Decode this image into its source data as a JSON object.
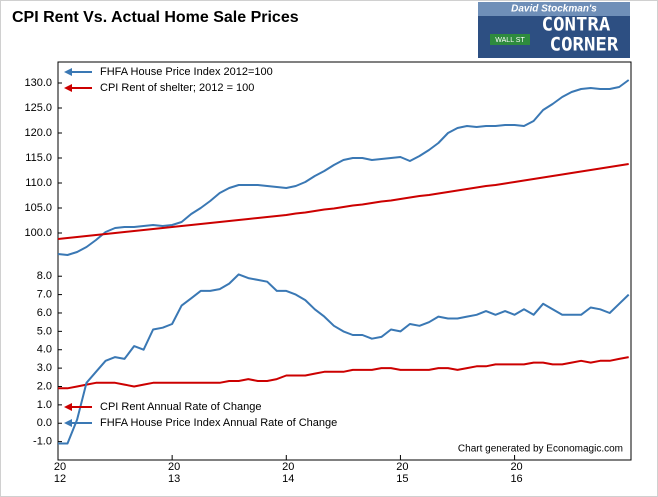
{
  "logo": {
    "byline": "David Stockman's",
    "word1": "CONTRA",
    "word2": "CORNER",
    "sign": "WALL ST"
  },
  "chart_data": [
    {
      "type": "line",
      "title": "CPI Rent Vs. Actual Home Sale Prices",
      "x": [
        2012,
        2012.083,
        2012.167,
        2012.25,
        2012.333,
        2012.417,
        2012.5,
        2012.583,
        2012.667,
        2012.75,
        2012.833,
        2012.917,
        2013,
        2013.083,
        2013.167,
        2013.25,
        2013.333,
        2013.417,
        2013.5,
        2013.583,
        2013.667,
        2013.75,
        2013.833,
        2013.917,
        2014,
        2014.083,
        2014.167,
        2014.25,
        2014.333,
        2014.417,
        2014.5,
        2014.583,
        2014.667,
        2014.75,
        2014.833,
        2014.917,
        2015,
        2015.083,
        2015.167,
        2015.25,
        2015.333,
        2015.417,
        2015.5,
        2015.583,
        2015.667,
        2015.75,
        2015.833,
        2015.917,
        2016,
        2016.083,
        2016.167,
        2016.25,
        2016.333,
        2016.417,
        2016.5,
        2016.583,
        2016.667,
        2016.75,
        2016.833,
        2016.917,
        2017
      ],
      "series": [
        {
          "name": "FHFA House Price Index 2012=100",
          "color": "#3a78b4",
          "values": [
            95.8,
            95.6,
            96.2,
            97.2,
            98.6,
            100.2,
            101.0,
            101.2,
            101.2,
            101.4,
            101.6,
            101.4,
            101.6,
            102.2,
            103.8,
            105.0,
            106.4,
            108.0,
            109.0,
            109.6,
            109.6,
            109.6,
            109.4,
            109.2,
            109.0,
            109.4,
            110.2,
            111.4,
            112.4,
            113.6,
            114.6,
            115.0,
            115.0,
            114.6,
            114.8,
            115.0,
            115.2,
            114.4,
            115.4,
            116.6,
            118.0,
            120.0,
            121.0,
            121.4,
            121.2,
            121.4,
            121.4,
            121.6,
            121.6,
            121.4,
            122.4,
            124.6,
            125.8,
            127.2,
            128.2,
            128.8,
            129.0,
            128.8,
            128.8,
            129.2,
            130.6
          ]
        },
        {
          "name": "CPI Rent of shelter; 2012 = 100",
          "color": "#cc0000",
          "values": [
            98.8,
            99.0,
            99.2,
            99.4,
            99.6,
            99.8,
            100.0,
            100.2,
            100.4,
            100.6,
            100.8,
            101.0,
            101.2,
            101.4,
            101.6,
            101.8,
            102.0,
            102.2,
            102.4,
            102.6,
            102.8,
            103.0,
            103.2,
            103.4,
            103.6,
            103.9,
            104.1,
            104.4,
            104.7,
            104.9,
            105.2,
            105.5,
            105.7,
            106.0,
            106.3,
            106.5,
            106.8,
            107.1,
            107.4,
            107.6,
            107.9,
            108.2,
            108.5,
            108.8,
            109.1,
            109.4,
            109.6,
            109.9,
            110.2,
            110.5,
            110.8,
            111.1,
            111.4,
            111.7,
            112.0,
            112.3,
            112.6,
            112.9,
            113.2,
            113.5,
            113.8
          ]
        }
      ],
      "xlim": [
        2012,
        2017.02
      ],
      "ylim": [
        95.4,
        134.2
      ],
      "yticks": [
        {
          "value": 100,
          "label": "100.0"
        },
        {
          "value": 105,
          "label": "105.0"
        },
        {
          "value": 110,
          "label": "110.0"
        },
        {
          "value": 115,
          "label": "115.0"
        },
        {
          "value": 120,
          "label": "120.0"
        },
        {
          "value": 125,
          "label": "125.0"
        },
        {
          "value": 130,
          "label": "130.0"
        }
      ],
      "legend": "upper left"
    },
    {
      "type": "line",
      "x": [
        2012,
        2012.083,
        2012.167,
        2012.25,
        2012.333,
        2012.417,
        2012.5,
        2012.583,
        2012.667,
        2012.75,
        2012.833,
        2012.917,
        2013,
        2013.083,
        2013.167,
        2013.25,
        2013.333,
        2013.417,
        2013.5,
        2013.583,
        2013.667,
        2013.75,
        2013.833,
        2013.917,
        2014,
        2014.083,
        2014.167,
        2014.25,
        2014.333,
        2014.417,
        2014.5,
        2014.583,
        2014.667,
        2014.75,
        2014.833,
        2014.917,
        2015,
        2015.083,
        2015.167,
        2015.25,
        2015.333,
        2015.417,
        2015.5,
        2015.583,
        2015.667,
        2015.75,
        2015.833,
        2015.917,
        2016,
        2016.083,
        2016.167,
        2016.25,
        2016.333,
        2016.417,
        2016.5,
        2016.583,
        2016.667,
        2016.75,
        2016.833,
        2016.917,
        2017
      ],
      "series": [
        {
          "name": "CPI Rent Annual Rate of Change",
          "color": "#cc0000",
          "values": [
            1.9,
            1.9,
            2.0,
            2.1,
            2.2,
            2.2,
            2.2,
            2.1,
            2.0,
            2.1,
            2.2,
            2.2,
            2.2,
            2.2,
            2.2,
            2.2,
            2.2,
            2.2,
            2.3,
            2.3,
            2.4,
            2.3,
            2.3,
            2.4,
            2.6,
            2.6,
            2.6,
            2.7,
            2.8,
            2.8,
            2.8,
            2.9,
            2.9,
            2.9,
            3.0,
            3.0,
            2.9,
            2.9,
            2.9,
            2.9,
            3.0,
            3.0,
            2.9,
            3.0,
            3.1,
            3.1,
            3.2,
            3.2,
            3.2,
            3.2,
            3.3,
            3.3,
            3.2,
            3.2,
            3.3,
            3.4,
            3.3,
            3.4,
            3.4,
            3.5,
            3.6
          ]
        },
        {
          "name": "FHFA House Price Index Annual Rate of Change",
          "color": "#3a78b4",
          "values": [
            -1.1,
            -1.1,
            0.2,
            2.2,
            2.8,
            3.4,
            3.6,
            3.5,
            4.2,
            4.0,
            5.1,
            5.2,
            5.4,
            6.4,
            6.8,
            7.2,
            7.2,
            7.3,
            7.6,
            8.1,
            7.9,
            7.8,
            7.7,
            7.2,
            7.2,
            7.0,
            6.7,
            6.2,
            5.8,
            5.3,
            5.0,
            4.8,
            4.8,
            4.6,
            4.7,
            5.1,
            5.0,
            5.4,
            5.3,
            5.5,
            5.8,
            5.7,
            5.7,
            5.8,
            5.9,
            6.1,
            5.9,
            6.1,
            5.9,
            6.2,
            5.9,
            6.5,
            6.2,
            5.9,
            5.9,
            5.9,
            6.3,
            6.2,
            6.0,
            6.5,
            7.0
          ]
        }
      ],
      "xlim": [
        2012,
        2017.02
      ],
      "ylim": [
        -2,
        9.1
      ],
      "yticks": [
        {
          "value": -1,
          "label": "-1.0"
        },
        {
          "value": 0,
          "label": "0.0"
        },
        {
          "value": 1,
          "label": "1.0"
        },
        {
          "value": 2,
          "label": "2.0"
        },
        {
          "value": 3,
          "label": "3.0"
        },
        {
          "value": 4,
          "label": "4.0"
        },
        {
          "value": 5,
          "label": "5.0"
        },
        {
          "value": 6,
          "label": "6.0"
        },
        {
          "value": 7,
          "label": "7.0"
        },
        {
          "value": 8,
          "label": "8.0"
        }
      ],
      "xticks": [
        {
          "value": 2012,
          "label": [
            "20",
            "12"
          ]
        },
        {
          "value": 2013,
          "label": [
            "20",
            "13"
          ]
        },
        {
          "value": 2014,
          "label": [
            "20",
            "14"
          ]
        },
        {
          "value": 2015,
          "label": [
            "20",
            "15"
          ]
        },
        {
          "value": 2016,
          "label": [
            "20",
            "16"
          ]
        }
      ],
      "legend": "lower left",
      "note": "Chart generated by Economagic.com"
    }
  ]
}
